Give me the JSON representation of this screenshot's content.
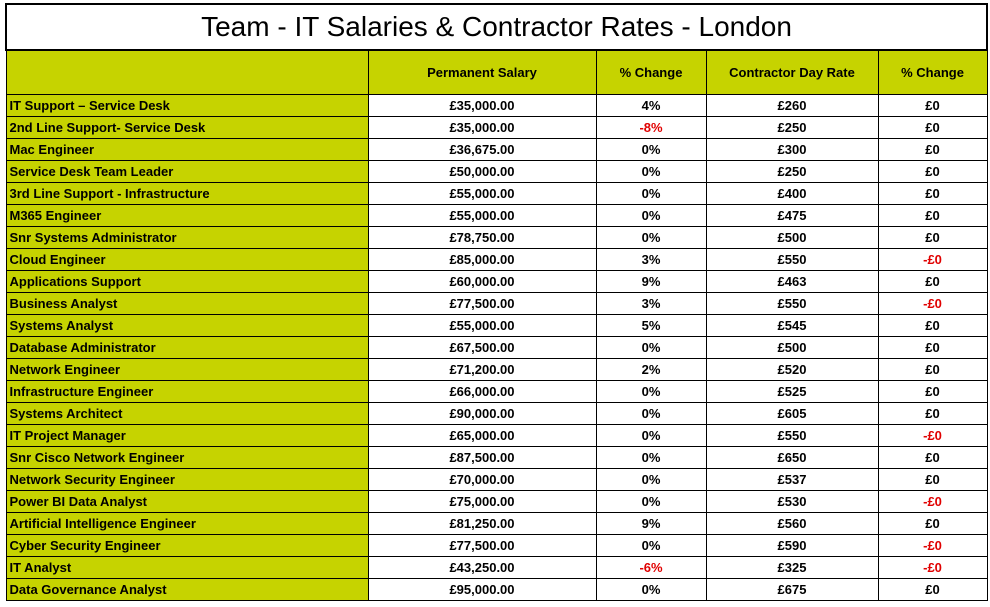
{
  "title": "Team - IT Salaries & Contractor Rates - London",
  "headers": {
    "role": "",
    "permanent_salary": "Permanent Salary",
    "salary_change": "% Change",
    "contractor_rate": "Contractor Day Rate",
    "rate_change": "% Change"
  },
  "negative_color": "#e00000",
  "accent_color": "#c6d300",
  "rows": [
    {
      "role": "IT Support – Service Desk",
      "salary": "£35,000.00",
      "salary_change": "4%",
      "rate": "£260",
      "rate_change": "£0",
      "salary_neg": false,
      "rate_neg": false
    },
    {
      "role": "2nd Line Support- Service Desk",
      "salary": "£35,000.00",
      "salary_change": "-8%",
      "rate": "£250",
      "rate_change": "£0",
      "salary_neg": true,
      "rate_neg": false
    },
    {
      "role": "Mac Engineer",
      "salary": "£36,675.00",
      "salary_change": "0%",
      "rate": "£300",
      "rate_change": "£0",
      "salary_neg": false,
      "rate_neg": false
    },
    {
      "role": "Service Desk Team Leader",
      "salary": "£50,000.00",
      "salary_change": "0%",
      "rate": "£250",
      "rate_change": "£0",
      "salary_neg": false,
      "rate_neg": false
    },
    {
      "role": "3rd Line Support - Infrastructure",
      "salary": "£55,000.00",
      "salary_change": "0%",
      "rate": "£400",
      "rate_change": "£0",
      "salary_neg": false,
      "rate_neg": false
    },
    {
      "role": "M365 Engineer",
      "salary": "£55,000.00",
      "salary_change": "0%",
      "rate": "£475",
      "rate_change": "£0",
      "salary_neg": false,
      "rate_neg": false
    },
    {
      "role": "Snr Systems Administrator",
      "salary": "£78,750.00",
      "salary_change": "0%",
      "rate": "£500",
      "rate_change": "£0",
      "salary_neg": false,
      "rate_neg": false
    },
    {
      "role": "Cloud Engineer",
      "salary": "£85,000.00",
      "salary_change": "3%",
      "rate": "£550",
      "rate_change": "-£0",
      "salary_neg": false,
      "rate_neg": true
    },
    {
      "role": "Applications Support",
      "salary": "£60,000.00",
      "salary_change": "9%",
      "rate": "£463",
      "rate_change": "£0",
      "salary_neg": false,
      "rate_neg": false
    },
    {
      "role": "Business Analyst",
      "salary": "£77,500.00",
      "salary_change": "3%",
      "rate": "£550",
      "rate_change": "-£0",
      "salary_neg": false,
      "rate_neg": true
    },
    {
      "role": "Systems Analyst",
      "salary": "£55,000.00",
      "salary_change": "5%",
      "rate": "£545",
      "rate_change": "£0",
      "salary_neg": false,
      "rate_neg": false
    },
    {
      "role": "Database Administrator",
      "salary": "£67,500.00",
      "salary_change": "0%",
      "rate": "£500",
      "rate_change": "£0",
      "salary_neg": false,
      "rate_neg": false
    },
    {
      "role": "Network Engineer",
      "salary": "£71,200.00",
      "salary_change": "2%",
      "rate": "£520",
      "rate_change": "£0",
      "salary_neg": false,
      "rate_neg": false
    },
    {
      "role": "Infrastructure Engineer",
      "salary": "£66,000.00",
      "salary_change": "0%",
      "rate": "£525",
      "rate_change": "£0",
      "salary_neg": false,
      "rate_neg": false
    },
    {
      "role": "Systems Architect",
      "salary": "£90,000.00",
      "salary_change": "0%",
      "rate": "£605",
      "rate_change": "£0",
      "salary_neg": false,
      "rate_neg": false
    },
    {
      "role": "IT Project Manager",
      "salary": "£65,000.00",
      "salary_change": "0%",
      "rate": "£550",
      "rate_change": "-£0",
      "salary_neg": false,
      "rate_neg": true
    },
    {
      "role": "Snr Cisco Network Engineer",
      "salary": "£87,500.00",
      "salary_change": "0%",
      "rate": "£650",
      "rate_change": "£0",
      "salary_neg": false,
      "rate_neg": false
    },
    {
      "role": "Network Security Engineer",
      "salary": "£70,000.00",
      "salary_change": "0%",
      "rate": "£537",
      "rate_change": "£0",
      "salary_neg": false,
      "rate_neg": false
    },
    {
      "role": "Power BI Data Analyst",
      "salary": "£75,000.00",
      "salary_change": "0%",
      "rate": "£530",
      "rate_change": "-£0",
      "salary_neg": false,
      "rate_neg": true
    },
    {
      "role": "Artificial Intelligence Engineer",
      "salary": "£81,250.00",
      "salary_change": "9%",
      "rate": "£560",
      "rate_change": "£0",
      "salary_neg": false,
      "rate_neg": false
    },
    {
      "role": "Cyber Security Engineer",
      "salary": "£77,500.00",
      "salary_change": "0%",
      "rate": "£590",
      "rate_change": "-£0",
      "salary_neg": false,
      "rate_neg": true
    },
    {
      "role": "IT Analyst",
      "salary": "£43,250.00",
      "salary_change": "-6%",
      "rate": "£325",
      "rate_change": "-£0",
      "salary_neg": true,
      "rate_neg": true
    },
    {
      "role": "Data Governance Analyst",
      "salary": "£95,000.00",
      "salary_change": "0%",
      "rate": "£675",
      "rate_change": "£0",
      "salary_neg": false,
      "rate_neg": false
    }
  ]
}
